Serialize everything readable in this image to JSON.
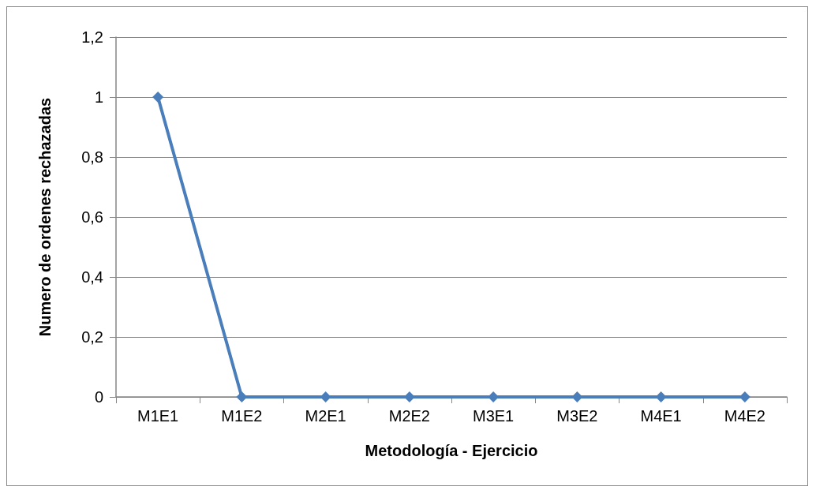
{
  "chart_data": {
    "type": "line",
    "xlabel": "Metodología - Ejercicio",
    "ylabel": "Numero de ordenes rechazadas",
    "categories": [
      "M1E1",
      "M1E2",
      "M2E1",
      "M2E2",
      "M3E1",
      "M3E2",
      "M4E1",
      "M4E2"
    ],
    "series": [
      {
        "color": "#4a7ebb",
        "values": [
          1,
          0,
          0,
          0,
          0,
          0,
          0,
          0
        ]
      }
    ],
    "ylim": [
      0,
      1.2
    ],
    "yticks": [
      0,
      {
        "value": 0.2,
        "label": "0,2"
      },
      {
        "value": 0.4,
        "label": "0,4"
      },
      {
        "value": 0.6,
        "label": "0,6"
      },
      {
        "value": 0.8,
        "label": "0,8"
      },
      1,
      {
        "value": 1.2,
        "label": "1,2"
      }
    ],
    "grid": "y",
    "marker": "diamond",
    "line_style": "solid"
  }
}
